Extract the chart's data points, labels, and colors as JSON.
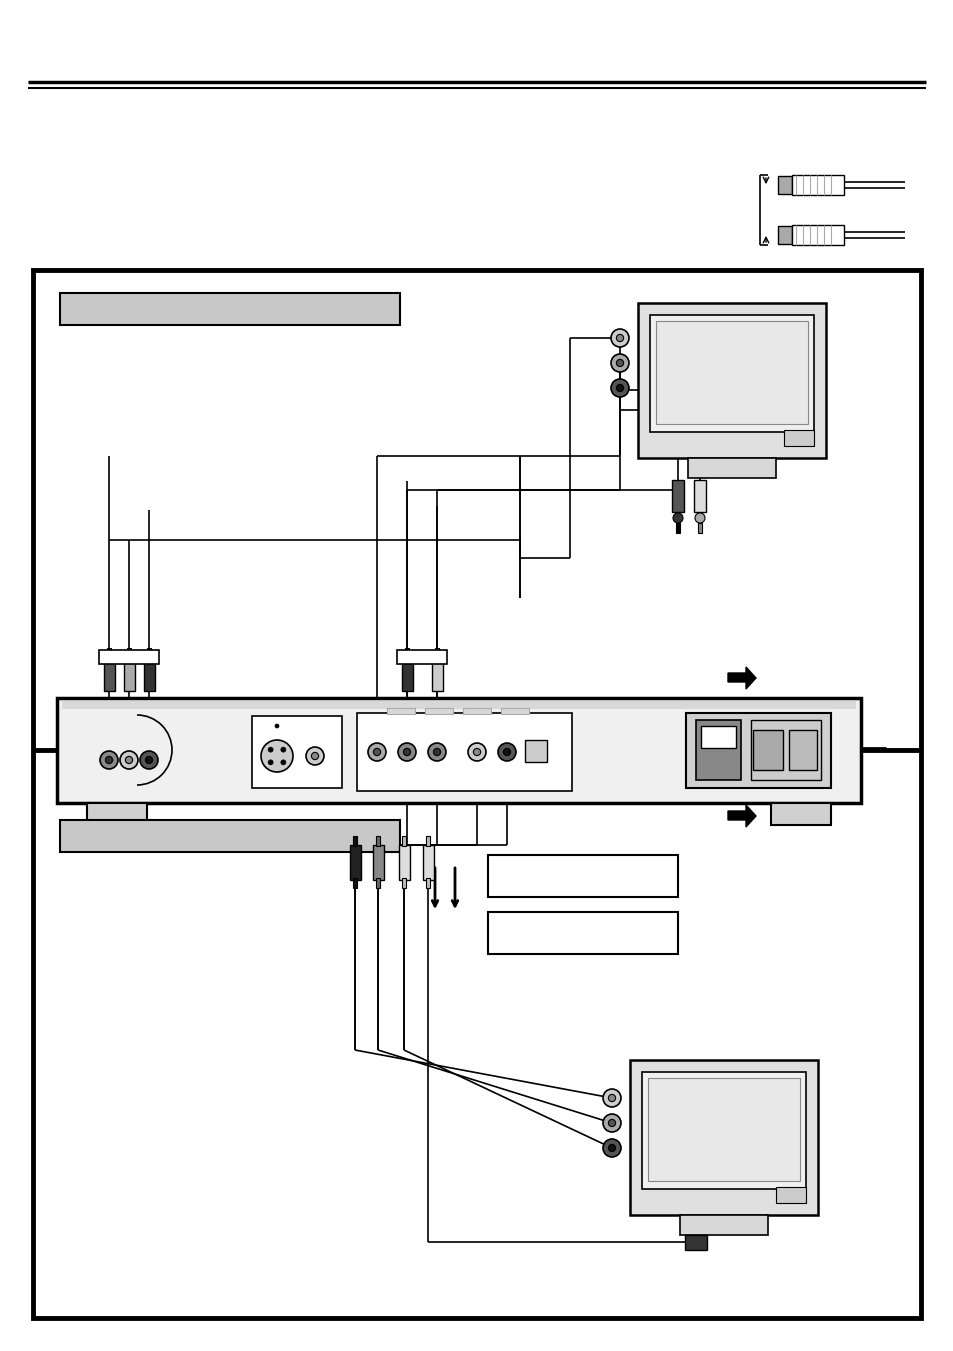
{
  "bg_color": "#ffffff",
  "page_width": 9.54,
  "page_height": 13.51,
  "dpi": 100
}
